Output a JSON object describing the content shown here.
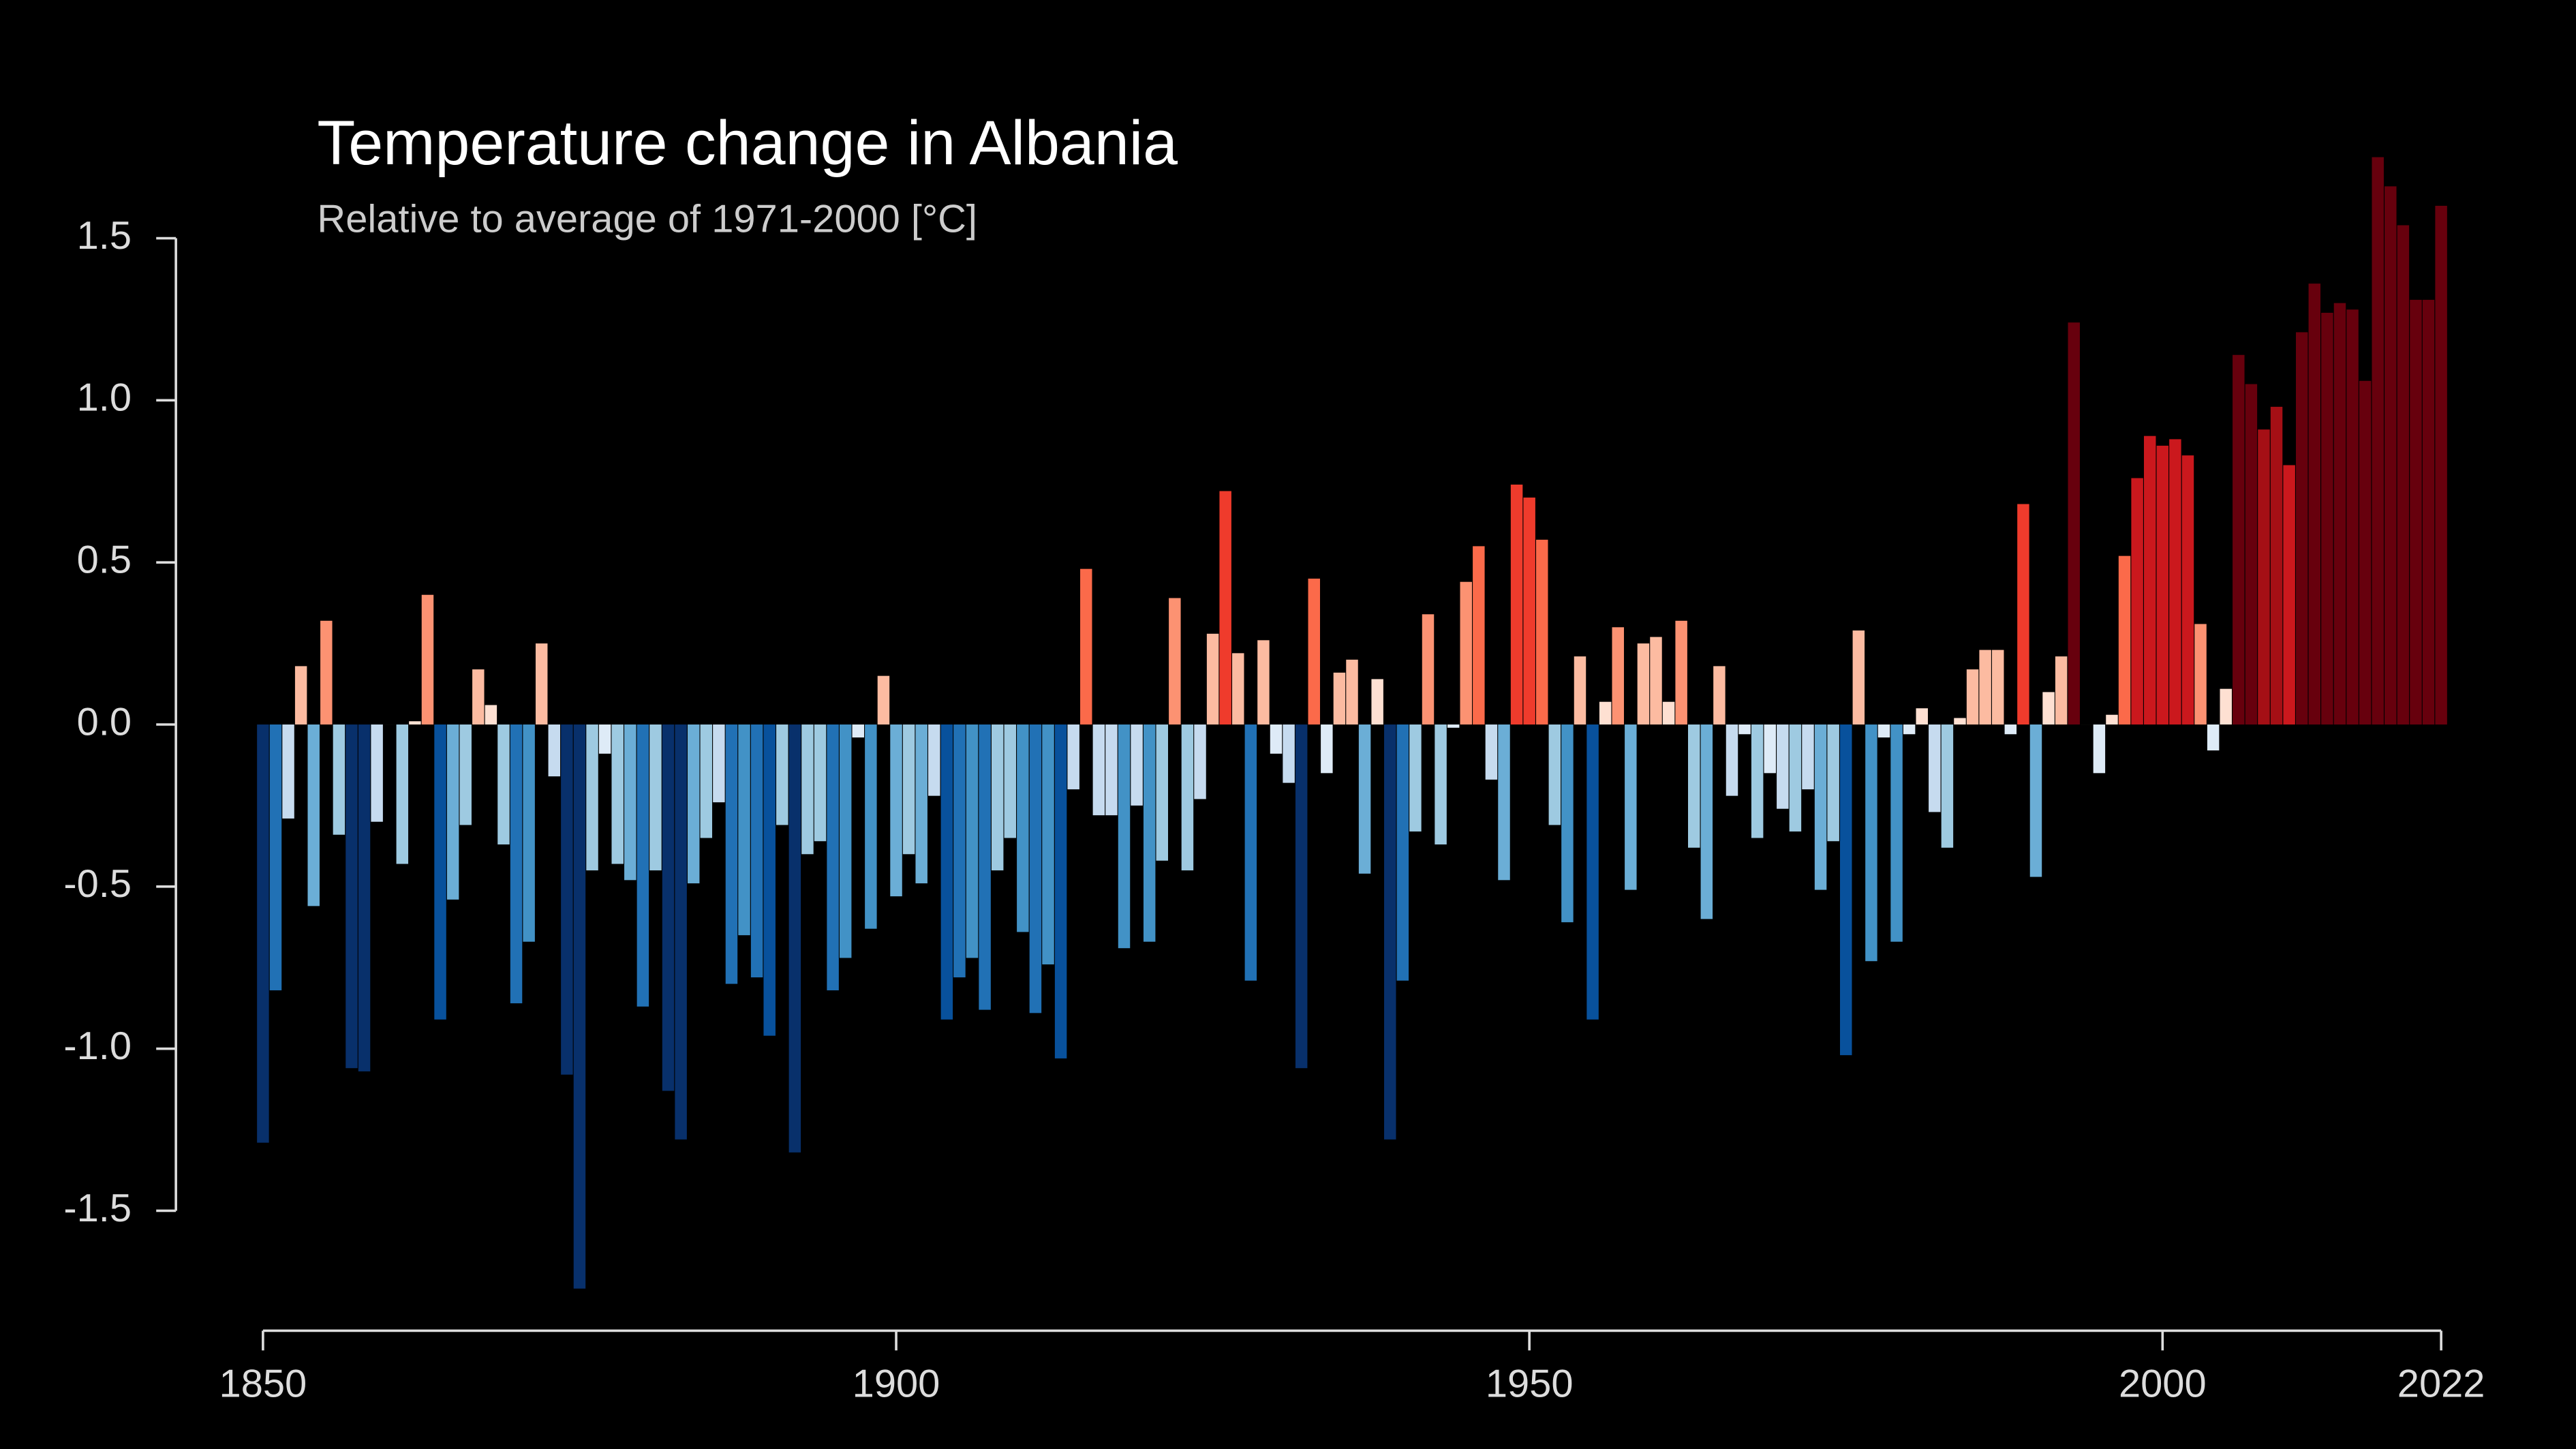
{
  "chart_data": {
    "type": "bar",
    "title": "Temperature change in Albania",
    "subtitle": "Relative to average of 1971-2000  [°C]",
    "x": [
      1850,
      1851,
      1852,
      1853,
      1854,
      1855,
      1856,
      1857,
      1858,
      1859,
      1860,
      1861,
      1862,
      1863,
      1864,
      1865,
      1866,
      1867,
      1868,
      1869,
      1870,
      1871,
      1872,
      1873,
      1874,
      1875,
      1876,
      1877,
      1878,
      1879,
      1880,
      1881,
      1882,
      1883,
      1884,
      1885,
      1886,
      1887,
      1888,
      1889,
      1890,
      1891,
      1892,
      1893,
      1894,
      1895,
      1896,
      1897,
      1898,
      1899,
      1900,
      1901,
      1902,
      1903,
      1904,
      1905,
      1906,
      1907,
      1908,
      1909,
      1910,
      1911,
      1912,
      1913,
      1914,
      1915,
      1916,
      1917,
      1918,
      1919,
      1920,
      1921,
      1922,
      1923,
      1924,
      1925,
      1926,
      1927,
      1928,
      1929,
      1930,
      1931,
      1932,
      1933,
      1934,
      1935,
      1936,
      1937,
      1938,
      1939,
      1940,
      1941,
      1942,
      1943,
      1944,
      1945,
      1946,
      1947,
      1948,
      1949,
      1950,
      1951,
      1952,
      1953,
      1954,
      1955,
      1956,
      1957,
      1958,
      1959,
      1960,
      1961,
      1962,
      1963,
      1964,
      1965,
      1966,
      1967,
      1968,
      1969,
      1970,
      1971,
      1972,
      1973,
      1974,
      1975,
      1976,
      1977,
      1978,
      1979,
      1980,
      1981,
      1982,
      1983,
      1984,
      1985,
      1986,
      1987,
      1988,
      1989,
      1990,
      1991,
      1992,
      1993,
      1994,
      1995,
      1996,
      1997,
      1998,
      1999,
      2000,
      2001,
      2002,
      2003,
      2004,
      2005,
      2006,
      2007,
      2008,
      2009,
      2010,
      2011,
      2012,
      2013,
      2014,
      2015,
      2016,
      2017,
      2018,
      2019,
      2020,
      2021,
      2022
    ],
    "values": [
      -1.29,
      -0.82,
      -0.29,
      0.18,
      -0.56,
      0.32,
      -0.34,
      -1.06,
      -1.07,
      -0.3,
      0.0,
      -0.43,
      0.01,
      0.4,
      -0.91,
      -0.54,
      -0.31,
      0.17,
      0.06,
      -0.37,
      -0.86,
      -0.67,
      0.25,
      -0.16,
      -1.08,
      -1.74,
      -0.45,
      -0.09,
      -0.43,
      -0.48,
      -0.87,
      -0.45,
      -1.13,
      -1.28,
      -0.49,
      -0.35,
      -0.24,
      -0.8,
      -0.65,
      -0.78,
      -0.96,
      -0.31,
      -1.32,
      -0.4,
      -0.36,
      -0.82,
      -0.72,
      -0.04,
      -0.63,
      0.15,
      -0.53,
      -0.4,
      -0.49,
      -0.22,
      -0.91,
      -0.78,
      -0.72,
      -0.88,
      -0.45,
      -0.35,
      -0.64,
      -0.89,
      -0.74,
      -1.03,
      -0.2,
      0.48,
      -0.28,
      -0.28,
      -0.69,
      -0.25,
      -0.67,
      -0.42,
      0.39,
      -0.45,
      -0.23,
      0.28,
      0.72,
      0.22,
      -0.79,
      0.26,
      -0.09,
      -0.18,
      -1.06,
      0.45,
      -0.15,
      0.16,
      0.2,
      -0.46,
      0.14,
      -1.28,
      -0.79,
      -0.33,
      0.34,
      -0.37,
      -0.01,
      0.44,
      0.55,
      -0.17,
      -0.48,
      0.74,
      0.7,
      0.57,
      -0.31,
      -0.61,
      0.21,
      -0.91,
      0.07,
      0.3,
      -0.51,
      0.25,
      0.27,
      0.07,
      0.32,
      -0.38,
      -0.6,
      0.18,
      -0.22,
      -0.03,
      -0.35,
      -0.15,
      -0.26,
      -0.33,
      -0.2,
      -0.51,
      -0.36,
      -1.02,
      0.29,
      -0.73,
      -0.04,
      -0.67,
      -0.03,
      0.05,
      -0.27,
      -0.38,
      0.02,
      0.17,
      0.23,
      0.23,
      -0.03,
      0.68,
      -0.47,
      0.1,
      0.21,
      1.24,
      0.0,
      -0.15,
      0.03,
      0.52,
      0.76,
      0.89,
      0.86,
      0.88,
      0.83,
      0.31,
      -0.08,
      0.11,
      1.14,
      1.05,
      0.91,
      0.98,
      0.8,
      1.21,
      1.36,
      1.27,
      1.3,
      1.28,
      1.06,
      1.75,
      1.66,
      1.54,
      1.31,
      1.31,
      1.6
    ],
    "color_scale": {
      "domain": [
        -1.2,
        1.2
      ],
      "colors": [
        "#08306b",
        "#08519c",
        "#2171b5",
        "#4292c6",
        "#6baed6",
        "#9ecae1",
        "#c6dbef",
        "#deebf7",
        "#fee0d2",
        "#fcbba1",
        "#fc9272",
        "#fb6a4a",
        "#ef3b2c",
        "#cb181d",
        "#a50f15",
        "#67000d"
      ]
    },
    "xlim": [
      1850,
      2022
    ],
    "xticks": [
      1850,
      1900,
      1950,
      2000,
      2022
    ],
    "ylim": [
      -1.5,
      1.5
    ],
    "yticks": [
      {
        "value": -1.5,
        "label": "-1.5"
      },
      {
        "value": -1,
        "label": "-1.0"
      },
      {
        "value": -0.5,
        "label": "-0.5"
      },
      {
        "value": 0,
        "label": "0.0"
      },
      {
        "value": 0.5,
        "label": "0.5"
      },
      {
        "value": 1,
        "label": "1.0"
      },
      {
        "value": 1.5,
        "label": "1.5"
      }
    ]
  }
}
